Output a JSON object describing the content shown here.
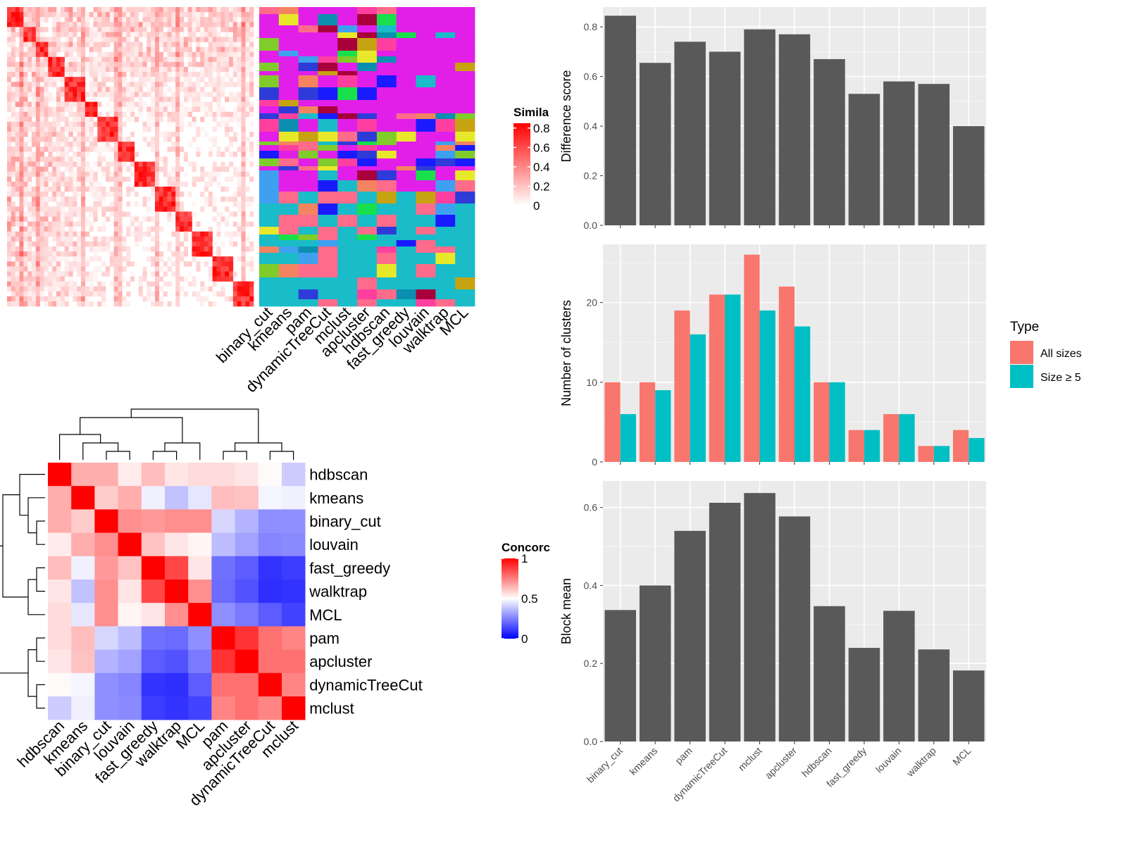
{
  "chart_data": [
    {
      "type": "heatmap",
      "panel": "similarity-heatmap",
      "legend": {
        "title": "Simila",
        "ticks": [
          "0.8",
          "0.6",
          "0.4",
          "0.2",
          "0"
        ],
        "tick_values": [
          0.8,
          0.6,
          0.4,
          0.2,
          0
        ],
        "range": [
          0,
          0.85
        ],
        "colors": [
          "#ffffff",
          "#ff0000"
        ]
      },
      "diagonal_blocks": [
        {
          "start": 0.0,
          "end": 0.06
        },
        {
          "start": 0.06,
          "end": 0.12
        },
        {
          "start": 0.12,
          "end": 0.17
        },
        {
          "start": 0.17,
          "end": 0.24
        },
        {
          "start": 0.24,
          "end": 0.31
        },
        {
          "start": 0.31,
          "end": 0.37
        },
        {
          "start": 0.37,
          "end": 0.45
        },
        {
          "start": 0.45,
          "end": 0.52
        },
        {
          "start": 0.52,
          "end": 0.6
        },
        {
          "start": 0.6,
          "end": 0.68
        },
        {
          "start": 0.68,
          "end": 0.75
        },
        {
          "start": 0.75,
          "end": 0.83
        },
        {
          "start": 0.83,
          "end": 0.91
        },
        {
          "start": 0.91,
          "end": 1.0
        }
      ]
    },
    {
      "type": "heatmap",
      "panel": "cluster-membership-heatmap",
      "columns": [
        "binary_cut",
        "kmeans",
        "pam",
        "dynamicTreeCut",
        "mclust",
        "apcluster",
        "hdbscan",
        "fast_greedy",
        "louvain",
        "walktrap",
        "MCL"
      ],
      "palette": [
        "#e11fe8",
        "#ff6b8a",
        "#19bcc8",
        "#2f3bd8",
        "#7fcc2a",
        "#c7a312",
        "#a8003a",
        "#f4845f",
        "#3fa0f0",
        "#18e04a",
        "#0b8fb0",
        "#ff3fa0",
        "#1a1aff",
        "#e8e82a"
      ],
      "summary": "cell-level categorical cluster assignments of items (rows) per method (columns)"
    },
    {
      "type": "heatmap",
      "panel": "concordance-heatmap",
      "rows": [
        "hdbscan",
        "kmeans",
        "binary_cut",
        "louvain",
        "fast_greedy",
        "walktrap",
        "MCL",
        "pam",
        "apcluster",
        "dynamicTreeCut",
        "mclust"
      ],
      "columns": [
        "hdbscan",
        "kmeans",
        "binary_cut",
        "louvain",
        "fast_greedy",
        "walktrap",
        "MCL",
        "pam",
        "apcluster",
        "dynamicTreeCut",
        "mclust"
      ],
      "values": [
        [
          1.0,
          0.66,
          0.66,
          0.54,
          0.63,
          0.55,
          0.57,
          0.57,
          0.55,
          0.51,
          0.4
        ],
        [
          0.66,
          1.0,
          0.6,
          0.66,
          0.47,
          0.38,
          0.45,
          0.63,
          0.62,
          0.48,
          0.47
        ],
        [
          0.66,
          0.6,
          1.0,
          0.72,
          0.7,
          0.72,
          0.72,
          0.42,
          0.35,
          0.28,
          0.28
        ],
        [
          0.54,
          0.66,
          0.72,
          1.0,
          0.62,
          0.55,
          0.52,
          0.37,
          0.32,
          0.26,
          0.27
        ],
        [
          0.63,
          0.47,
          0.7,
          0.62,
          1.0,
          0.86,
          0.55,
          0.22,
          0.18,
          0.1,
          0.12
        ],
        [
          0.55,
          0.38,
          0.72,
          0.55,
          0.86,
          1.0,
          0.72,
          0.21,
          0.16,
          0.09,
          0.1
        ],
        [
          0.57,
          0.45,
          0.72,
          0.52,
          0.55,
          0.72,
          1.0,
          0.28,
          0.24,
          0.18,
          0.13
        ],
        [
          0.57,
          0.63,
          0.42,
          0.37,
          0.22,
          0.21,
          0.28,
          1.0,
          0.9,
          0.78,
          0.74
        ],
        [
          0.55,
          0.62,
          0.35,
          0.32,
          0.18,
          0.16,
          0.24,
          0.9,
          1.0,
          0.78,
          0.78
        ],
        [
          0.51,
          0.48,
          0.28,
          0.26,
          0.1,
          0.09,
          0.18,
          0.78,
          0.78,
          1.0,
          0.74
        ],
        [
          0.4,
          0.47,
          0.28,
          0.27,
          0.12,
          0.1,
          0.13,
          0.74,
          0.78,
          0.74,
          1.0
        ]
      ],
      "legend": {
        "title": "Concorc",
        "ticks": [
          "1",
          "0.5",
          "0"
        ],
        "tick_values": [
          1,
          0.5,
          0
        ],
        "colors": [
          "#0000ff",
          "#ffffff",
          "#ff0000"
        ]
      },
      "dendrogram": "hierarchical clustering of methods shown on top and left"
    },
    {
      "type": "bar",
      "panel": "difference-score",
      "categories": [
        "binary_cut",
        "kmeans",
        "pam",
        "dynamicTreeCut",
        "mclust",
        "apcluster",
        "hdbscan",
        "fast_greedy",
        "louvain",
        "walktrap",
        "MCL"
      ],
      "values": [
        0.845,
        0.655,
        0.74,
        0.7,
        0.79,
        0.77,
        0.67,
        0.53,
        0.58,
        0.57,
        0.4
      ],
      "ylabel": "Difference score",
      "ylim": [
        0,
        0.88
      ],
      "yticks": [
        0.0,
        0.2,
        0.4,
        0.6,
        0.8
      ],
      "ytick_labels": [
        "0.0",
        "0.2",
        "0.4",
        "0.6",
        "0.8"
      ],
      "bar_color": "#595959"
    },
    {
      "type": "bar",
      "panel": "number-of-clusters",
      "categories": [
        "binary_cut",
        "kmeans",
        "pam",
        "dynamicTreeCut",
        "mclust",
        "apcluster",
        "hdbscan",
        "fast_greedy",
        "louvain",
        "walktrap",
        "MCL"
      ],
      "series": [
        {
          "name": "All sizes",
          "values": [
            10,
            10,
            19,
            21,
            26,
            22,
            10,
            4,
            6,
            2,
            4
          ],
          "color": "#f8766d"
        },
        {
          "name": "Size ≥ 5",
          "values": [
            6,
            9,
            16,
            21,
            19,
            17,
            10,
            4,
            6,
            2,
            3
          ],
          "color": "#00bfc4"
        }
      ],
      "ylabel": "Number of clusters",
      "ylim": [
        0,
        27.3
      ],
      "yticks": [
        0,
        10,
        20
      ],
      "ytick_labels": [
        "0",
        "10",
        "20"
      ],
      "legend": {
        "title": "Type",
        "position": "right"
      }
    },
    {
      "type": "bar",
      "panel": "block-mean",
      "categories": [
        "binary_cut",
        "kmeans",
        "pam",
        "dynamicTreeCut",
        "mclust",
        "apcluster",
        "hdbscan",
        "fast_greedy",
        "louvain",
        "walktrap",
        "MCL"
      ],
      "values": [
        0.337,
        0.4,
        0.54,
        0.612,
        0.637,
        0.577,
        0.347,
        0.24,
        0.335,
        0.236,
        0.182
      ],
      "ylabel": "Block mean",
      "ylim": [
        0,
        0.668
      ],
      "yticks": [
        0.0,
        0.2,
        0.4,
        0.6
      ],
      "ytick_labels": [
        "0.0",
        "0.2",
        "0.4",
        "0.6"
      ],
      "bar_color": "#595959"
    }
  ]
}
